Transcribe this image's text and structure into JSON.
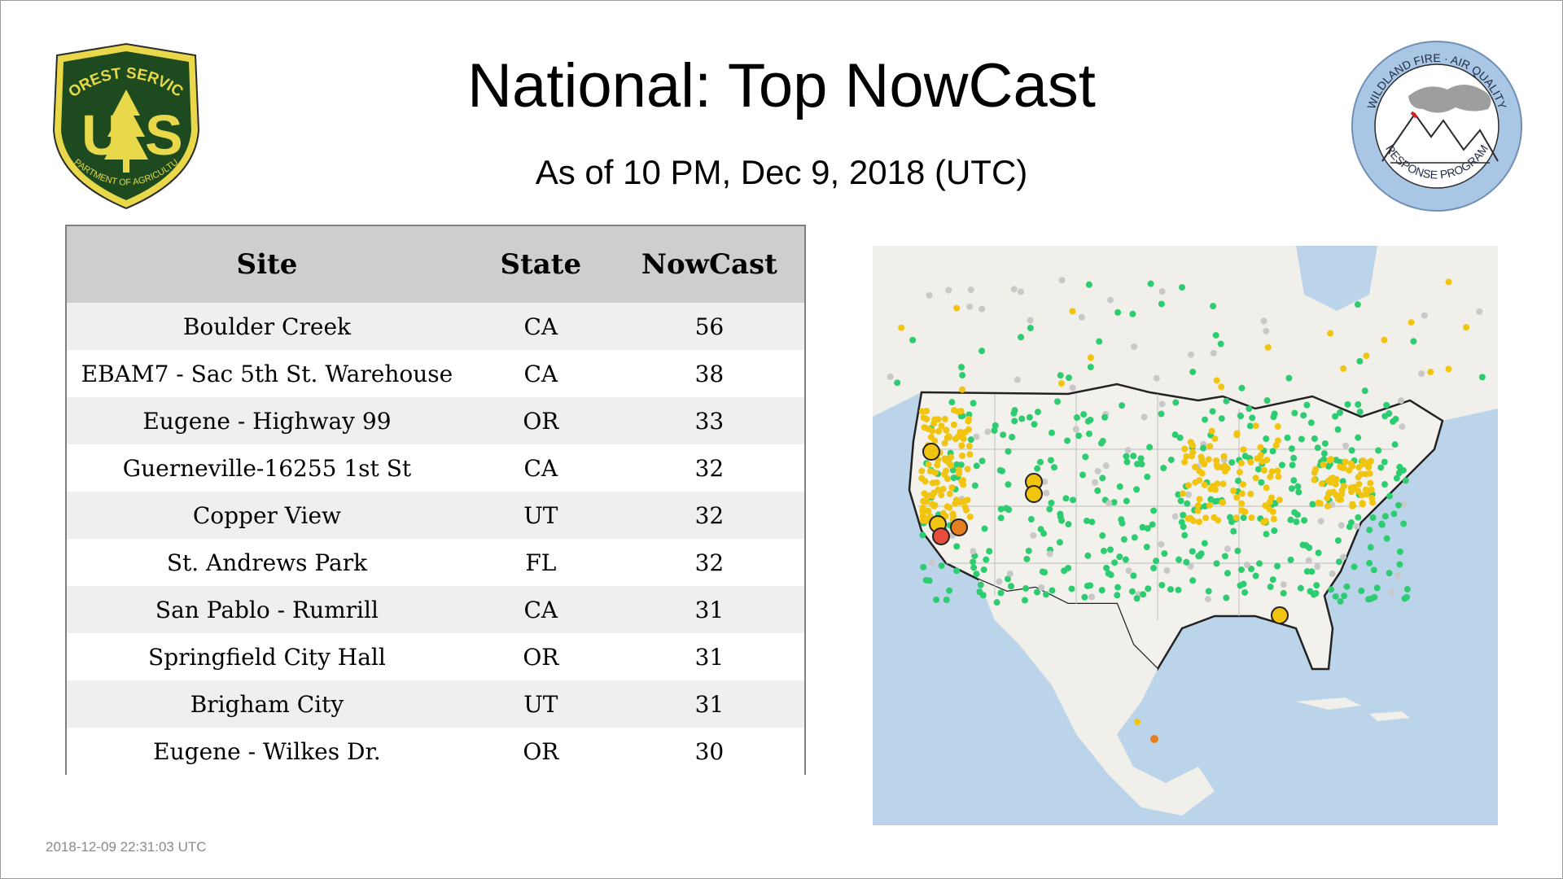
{
  "header": {
    "title": "National: Top NowCast",
    "subtitle": "As of 10 PM, Dec  9, 2018 (UTC)"
  },
  "logos": {
    "left": {
      "icon": "forest-service-shield-logo",
      "text_top": "FOREST SERVICE",
      "text_bottom": "DEPARTMENT OF AGRICULTURE",
      "letters": "U S"
    },
    "right": {
      "icon": "wildland-fire-air-quality-logo",
      "text_top": "WILDLAND FIRE · AIR QUALITY",
      "text_bottom": "RESPONSE PROGRAM"
    }
  },
  "table": {
    "columns": [
      "Site",
      "State",
      "NowCast"
    ],
    "rows": [
      [
        "Boulder Creek",
        "CA",
        "56"
      ],
      [
        "EBAM7 - Sac 5th St. Warehouse",
        "CA",
        "38"
      ],
      [
        "Eugene - Highway 99",
        "OR",
        "33"
      ],
      [
        "Guerneville-16255 1st St",
        "CA",
        "32"
      ],
      [
        "Copper View",
        "UT",
        "32"
      ],
      [
        "St. Andrews Park",
        "FL",
        "32"
      ],
      [
        "San Pablo - Rumrill",
        "CA",
        "31"
      ],
      [
        "Springfield City Hall",
        "OR",
        "31"
      ],
      [
        "Brigham City",
        "UT",
        "31"
      ],
      [
        "Eugene - Wilkes Dr.",
        "OR",
        "30"
      ]
    ]
  },
  "map": {
    "icon": "air-quality-monitor-map",
    "colors": {
      "good": "#2ecc71",
      "moderate": "#f1c40f",
      "usg": "#e67e22",
      "unhealthy": "#e74c3c",
      "no_data": "#c8c8c8",
      "water": "#bcd4ea",
      "land": "#f1efea"
    }
  },
  "footer": {
    "timestamp": "2018-12-09 22:31:03 UTC"
  }
}
